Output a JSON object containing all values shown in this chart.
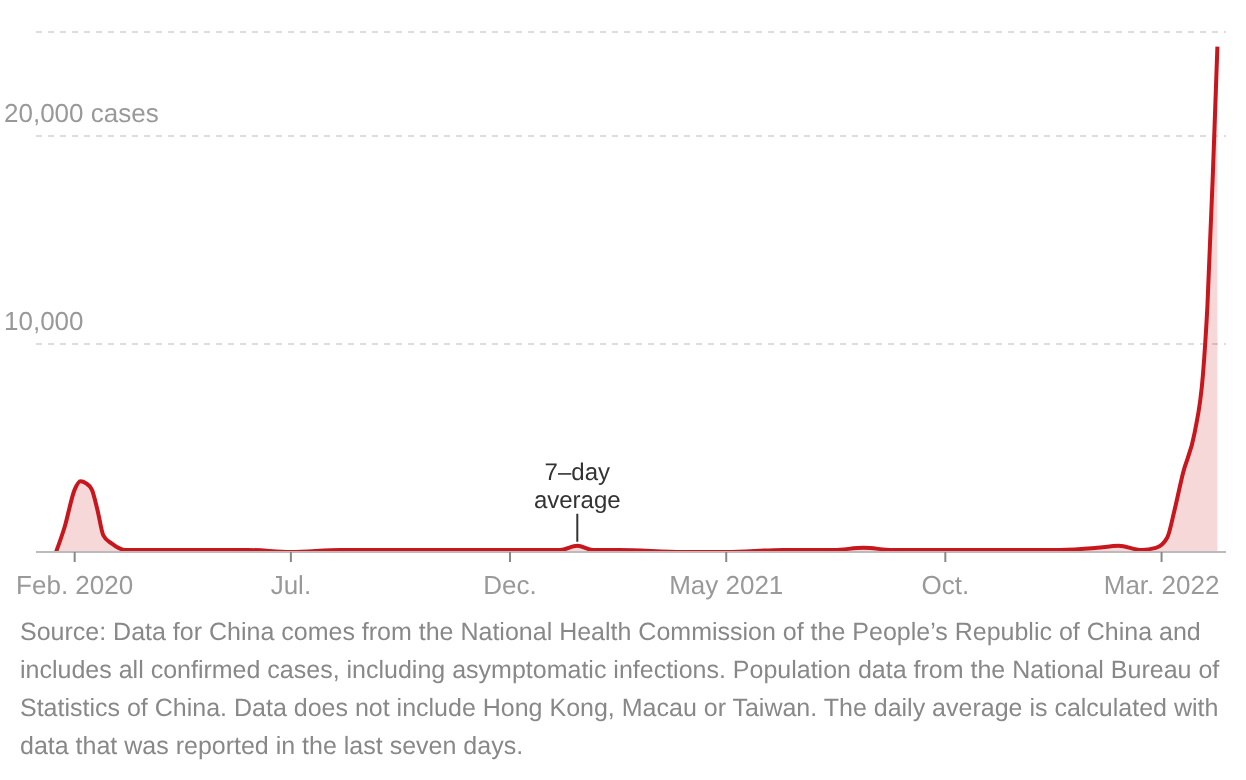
{
  "chart_data": {
    "type": "area",
    "x": [
      "2020-01-19",
      "2020-01-25",
      "2020-02-01",
      "2020-02-05",
      "2020-02-09",
      "2020-02-13",
      "2020-02-17",
      "2020-02-21",
      "2020-02-27",
      "2020-03-07",
      "2020-03-20",
      "2020-04-15",
      "2020-05-10",
      "2020-06-01",
      "2020-07-01",
      "2020-08-05",
      "2020-09-10",
      "2020-10-15",
      "2020-11-15",
      "2020-12-10",
      "2021-01-05",
      "2021-01-17",
      "2021-01-28",
      "2021-02-15",
      "2021-04-01",
      "2021-05-01",
      "2021-06-10",
      "2021-07-15",
      "2021-08-05",
      "2021-08-25",
      "2021-09-20",
      "2021-10-15",
      "2021-11-15",
      "2021-12-20",
      "2022-01-15",
      "2022-01-30",
      "2022-02-15",
      "2022-02-25",
      "2022-03-05",
      "2022-03-10",
      "2022-03-16",
      "2022-03-24",
      "2022-03-30",
      "2022-04-02",
      "2022-04-06",
      "2022-04-09"
    ],
    "series": [
      {
        "color": "#c8161d",
        "values": [
          0,
          1200,
          3000,
          3400,
          3300,
          3000,
          2000,
          800,
          400,
          100,
          100,
          100,
          100,
          100,
          0,
          100,
          100,
          100,
          100,
          100,
          100,
          300,
          100,
          100,
          0,
          0,
          100,
          100,
          200,
          100,
          100,
          100,
          100,
          100,
          200,
          300,
          100,
          200,
          700,
          2000,
          3800,
          5700,
          8600,
          11800,
          18500,
          24300
        ]
      }
    ],
    "xlim": [
      "2020-01-05",
      "2022-04-15"
    ],
    "xticks": [
      {
        "value": "2020-02-01",
        "label": "Feb. 2020"
      },
      {
        "value": "2020-07-01",
        "label": "Jul."
      },
      {
        "value": "2020-12-01",
        "label": "Dec."
      },
      {
        "value": "2021-05-01",
        "label": "May 2021"
      },
      {
        "value": "2021-10-01",
        "label": "Oct."
      },
      {
        "value": "2022-03-01",
        "label": "Mar. 2022"
      }
    ],
    "ylim": [
      0,
      25000
    ],
    "yticks": [
      {
        "value": 0,
        "label": null
      },
      {
        "value": 10000,
        "label": "10,000"
      },
      {
        "value": 20000,
        "label": "20,000 cases"
      }
    ],
    "grid": "y",
    "annotations": [
      {
        "text": "7–day average",
        "x": "2021-01-17",
        "y": 300
      },
      "Source: Data for China comes from the National Health Commission of the People’s Republic of China and includes all confirmed cases, including asymptomatic infections. Population data from the National Bureau of Statistics of China. Data does not include Hong Kong, Macau or Taiwan. The daily average is calculated with data that was reported in the last seven days."
    ]
  }
}
